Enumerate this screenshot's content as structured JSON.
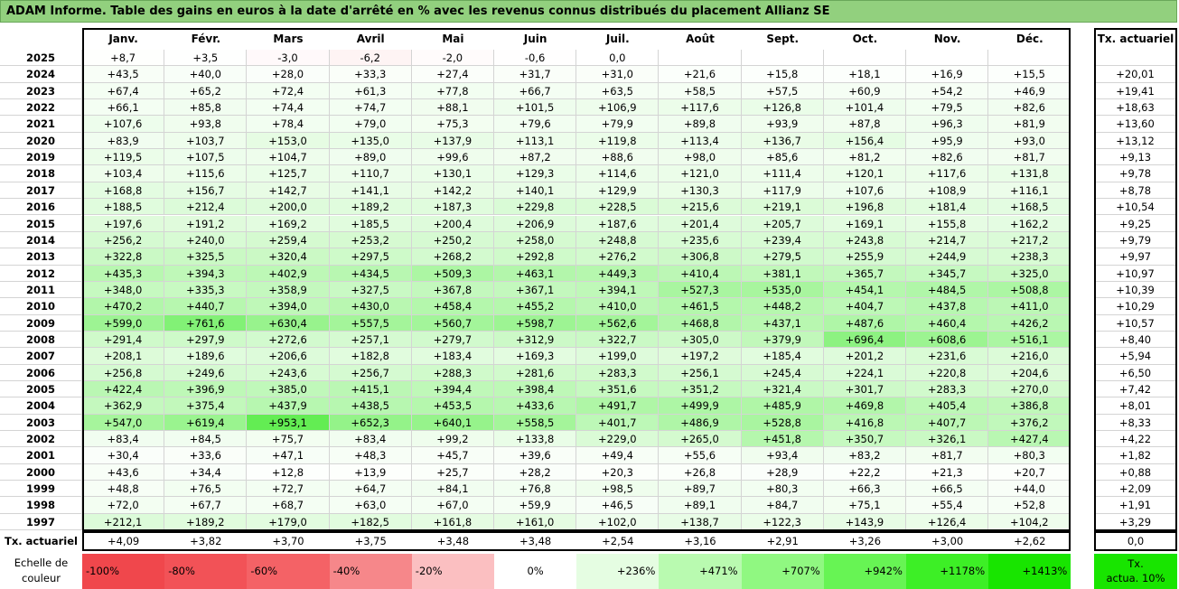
{
  "title": "ADAM Informe. Table des gains en euros à la date d'arrêté en % avec les revenus connus distribués du placement Allianz SE",
  "months": [
    "Janv.",
    "Févr.",
    "Mars",
    "Avril",
    "Mai",
    "Juin",
    "Juil.",
    "Août",
    "Sept.",
    "Oct.",
    "Nov.",
    "Déc."
  ],
  "rate_header": "Tx. actuariel",
  "rows": [
    {
      "year": "2025",
      "values": [
        "+8,7",
        "+3,5",
        "-3,0",
        "-6,2",
        "-2,0",
        "-0,6",
        "0,0",
        "",
        "",
        "",
        "",
        ""
      ],
      "rate": ""
    },
    {
      "year": "2024",
      "values": [
        "+43,5",
        "+40,0",
        "+28,0",
        "+33,3",
        "+27,4",
        "+31,7",
        "+31,0",
        "+21,6",
        "+15,8",
        "+18,1",
        "+16,9",
        "+15,5"
      ],
      "rate": "+20,01"
    },
    {
      "year": "2023",
      "values": [
        "+67,4",
        "+65,2",
        "+72,4",
        "+61,3",
        "+77,8",
        "+66,7",
        "+63,5",
        "+58,5",
        "+57,5",
        "+60,9",
        "+54,2",
        "+46,9"
      ],
      "rate": "+19,41"
    },
    {
      "year": "2022",
      "values": [
        "+66,1",
        "+85,8",
        "+74,4",
        "+74,7",
        "+88,1",
        "+101,5",
        "+106,9",
        "+117,6",
        "+126,8",
        "+101,4",
        "+79,5",
        "+82,6"
      ],
      "rate": "+18,63"
    },
    {
      "year": "2021",
      "values": [
        "+107,6",
        "+93,8",
        "+78,4",
        "+79,0",
        "+75,3",
        "+79,6",
        "+79,9",
        "+89,8",
        "+93,9",
        "+87,8",
        "+96,3",
        "+81,9"
      ],
      "rate": "+13,60"
    },
    {
      "year": "2020",
      "values": [
        "+83,9",
        "+103,7",
        "+153,0",
        "+135,0",
        "+137,9",
        "+113,1",
        "+119,8",
        "+113,4",
        "+136,7",
        "+156,4",
        "+95,9",
        "+93,0"
      ],
      "rate": "+13,12"
    },
    {
      "year": "2019",
      "values": [
        "+119,5",
        "+107,5",
        "+104,7",
        "+89,0",
        "+99,6",
        "+87,2",
        "+88,6",
        "+98,0",
        "+85,6",
        "+81,2",
        "+82,6",
        "+81,7"
      ],
      "rate": "+9,13"
    },
    {
      "year": "2018",
      "values": [
        "+103,4",
        "+115,6",
        "+125,7",
        "+110,7",
        "+130,1",
        "+129,3",
        "+114,6",
        "+121,0",
        "+111,4",
        "+120,1",
        "+117,6",
        "+131,8"
      ],
      "rate": "+9,78"
    },
    {
      "year": "2017",
      "values": [
        "+168,8",
        "+156,7",
        "+142,7",
        "+141,1",
        "+142,2",
        "+140,1",
        "+129,9",
        "+130,3",
        "+117,9",
        "+107,6",
        "+108,9",
        "+116,1"
      ],
      "rate": "+8,78"
    },
    {
      "year": "2016",
      "values": [
        "+188,5",
        "+212,4",
        "+200,0",
        "+189,2",
        "+187,3",
        "+229,8",
        "+228,5",
        "+215,6",
        "+219,1",
        "+196,8",
        "+181,4",
        "+168,5"
      ],
      "rate": "+10,54"
    },
    {
      "year": "2015",
      "values": [
        "+197,6",
        "+191,2",
        "+169,2",
        "+185,5",
        "+200,4",
        "+206,9",
        "+187,6",
        "+201,4",
        "+205,7",
        "+169,1",
        "+155,8",
        "+162,2"
      ],
      "rate": "+9,25"
    },
    {
      "year": "2014",
      "values": [
        "+256,2",
        "+240,0",
        "+259,4",
        "+253,2",
        "+250,2",
        "+258,0",
        "+248,8",
        "+235,6",
        "+239,4",
        "+243,8",
        "+214,7",
        "+217,2"
      ],
      "rate": "+9,79"
    },
    {
      "year": "2013",
      "values": [
        "+322,8",
        "+325,5",
        "+320,4",
        "+297,5",
        "+268,2",
        "+292,8",
        "+276,2",
        "+306,8",
        "+279,5",
        "+255,9",
        "+244,9",
        "+238,3"
      ],
      "rate": "+9,97"
    },
    {
      "year": "2012",
      "values": [
        "+435,3",
        "+394,3",
        "+402,9",
        "+434,5",
        "+509,3",
        "+463,1",
        "+449,3",
        "+410,4",
        "+381,1",
        "+365,7",
        "+345,7",
        "+325,0"
      ],
      "rate": "+10,97"
    },
    {
      "year": "2011",
      "values": [
        "+348,0",
        "+335,3",
        "+358,9",
        "+327,5",
        "+367,8",
        "+367,1",
        "+394,1",
        "+527,3",
        "+535,0",
        "+454,1",
        "+484,5",
        "+508,8"
      ],
      "rate": "+10,39"
    },
    {
      "year": "2010",
      "values": [
        "+470,2",
        "+440,7",
        "+394,0",
        "+430,0",
        "+458,4",
        "+455,2",
        "+410,0",
        "+461,5",
        "+448,2",
        "+404,7",
        "+437,8",
        "+411,0"
      ],
      "rate": "+10,29"
    },
    {
      "year": "2009",
      "values": [
        "+599,0",
        "+761,6",
        "+630,4",
        "+557,5",
        "+560,7",
        "+598,7",
        "+562,6",
        "+468,8",
        "+437,1",
        "+487,6",
        "+460,4",
        "+426,2"
      ],
      "rate": "+10,57"
    },
    {
      "year": "2008",
      "values": [
        "+291,4",
        "+297,9",
        "+272,6",
        "+257,1",
        "+279,7",
        "+312,9",
        "+322,7",
        "+305,0",
        "+379,9",
        "+696,4",
        "+608,6",
        "+516,1"
      ],
      "rate": "+8,40"
    },
    {
      "year": "2007",
      "values": [
        "+208,1",
        "+189,6",
        "+206,6",
        "+182,8",
        "+183,4",
        "+169,3",
        "+199,0",
        "+197,2",
        "+185,4",
        "+201,2",
        "+231,6",
        "+216,0"
      ],
      "rate": "+5,94"
    },
    {
      "year": "2006",
      "values": [
        "+256,8",
        "+249,6",
        "+243,6",
        "+256,7",
        "+288,3",
        "+281,6",
        "+283,3",
        "+256,1",
        "+245,4",
        "+224,1",
        "+220,8",
        "+204,6"
      ],
      "rate": "+6,50"
    },
    {
      "year": "2005",
      "values": [
        "+422,4",
        "+396,9",
        "+385,0",
        "+415,1",
        "+394,4",
        "+398,4",
        "+351,6",
        "+351,2",
        "+321,4",
        "+301,7",
        "+283,3",
        "+270,0"
      ],
      "rate": "+7,42"
    },
    {
      "year": "2004",
      "values": [
        "+362,9",
        "+375,4",
        "+437,9",
        "+438,5",
        "+453,5",
        "+433,6",
        "+491,7",
        "+499,9",
        "+485,9",
        "+469,8",
        "+405,4",
        "+386,8"
      ],
      "rate": "+8,01"
    },
    {
      "year": "2003",
      "values": [
        "+547,0",
        "+619,4",
        "+953,1",
        "+652,3",
        "+640,1",
        "+558,5",
        "+401,7",
        "+486,9",
        "+528,8",
        "+416,8",
        "+407,7",
        "+376,2"
      ],
      "rate": "+8,33"
    },
    {
      "year": "2002",
      "values": [
        "+83,4",
        "+84,5",
        "+75,7",
        "+83,4",
        "+99,2",
        "+133,8",
        "+229,0",
        "+265,0",
        "+451,8",
        "+350,7",
        "+326,1",
        "+427,4"
      ],
      "rate": "+4,22"
    },
    {
      "year": "2001",
      "values": [
        "+30,4",
        "+33,6",
        "+47,1",
        "+48,3",
        "+45,7",
        "+39,6",
        "+49,4",
        "+55,6",
        "+93,4",
        "+83,2",
        "+81,7",
        "+80,3"
      ],
      "rate": "+1,82"
    },
    {
      "year": "2000",
      "values": [
        "+43,6",
        "+34,4",
        "+12,8",
        "+13,9",
        "+25,7",
        "+28,2",
        "+20,3",
        "+26,8",
        "+28,9",
        "+22,2",
        "+21,3",
        "+20,7"
      ],
      "rate": "+0,88"
    },
    {
      "year": "1999",
      "values": [
        "+48,8",
        "+76,5",
        "+72,7",
        "+64,7",
        "+84,1",
        "+76,8",
        "+98,5",
        "+89,7",
        "+80,3",
        "+66,3",
        "+66,5",
        "+44,0"
      ],
      "rate": "+2,09"
    },
    {
      "year": "1998",
      "values": [
        "+72,0",
        "+67,7",
        "+68,7",
        "+63,0",
        "+67,0",
        "+59,9",
        "+46,5",
        "+89,1",
        "+84,7",
        "+75,1",
        "+55,4",
        "+52,8"
      ],
      "rate": "+1,91"
    },
    {
      "year": "1997",
      "values": [
        "+212,1",
        "+189,2",
        "+179,0",
        "+182,5",
        "+161,8",
        "+161,0",
        "+102,0",
        "+138,7",
        "+122,3",
        "+143,9",
        "+126,4",
        "+104,2"
      ],
      "rate": "+3,29"
    }
  ],
  "footer": {
    "label": "Tx. actuariel",
    "values": [
      "+4,09",
      "+3,82",
      "+3,70",
      "+3,75",
      "+3,48",
      "+3,48",
      "+2,54",
      "+3,16",
      "+2,91",
      "+3,26",
      "+3,00",
      "+2,62"
    ],
    "rate": "0,0"
  },
  "scale": {
    "label_line1": "Echelle de",
    "label_line2": "couleur",
    "items": [
      {
        "label": "-100%",
        "color": "#f0474c"
      },
      {
        "label": "-80%",
        "color": "#f25257"
      },
      {
        "label": "-60%",
        "color": "#f46266"
      },
      {
        "label": "-40%",
        "color": "#f6878a"
      },
      {
        "label": "-20%",
        "color": "#fbbfc1"
      },
      {
        "label": "0%",
        "color": "#ffffff"
      },
      {
        "label": "+236%",
        "color": "#e5fde2"
      },
      {
        "label": "+471%",
        "color": "#b9fab0"
      },
      {
        "label": "+707%",
        "color": "#90f881"
      },
      {
        "label": "+942%",
        "color": "#67f454"
      },
      {
        "label": "+1178%",
        "color": "#3def26"
      },
      {
        "label": "+1413%",
        "color": "#18e500"
      }
    ],
    "rate_label_line1": "Tx.",
    "rate_label_line2": "actua. 10%",
    "rate_color": "#18e500"
  },
  "colors": {
    "title_bg": "#92d07e",
    "grid_line": "#d4d4d4",
    "positive": "#18e500",
    "negative": "#f0474c"
  }
}
